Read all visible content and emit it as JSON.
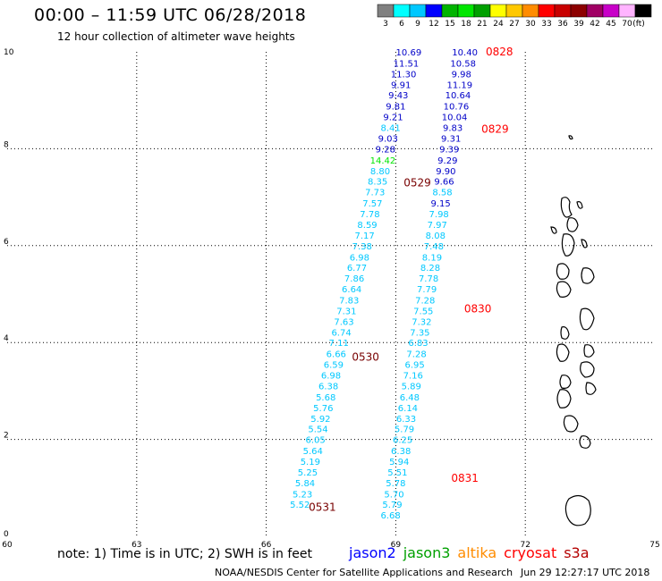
{
  "title": "00:00 – 11:59 UTC 06/28/2018",
  "subtitle": "12 hour collection of altimeter wave heights",
  "colorbar": {
    "unit_label": "(ft)",
    "bins": [
      {
        "label": "3",
        "color": "#808080"
      },
      {
        "label": "6",
        "color": "#00ffff"
      },
      {
        "label": "9",
        "color": "#00c8ff"
      },
      {
        "label": "12",
        "color": "#0000ff"
      },
      {
        "label": "15",
        "color": "#00b400"
      },
      {
        "label": "18",
        "color": "#00e600"
      },
      {
        "label": "21",
        "color": "#00a000"
      },
      {
        "label": "24",
        "color": "#ffff00"
      },
      {
        "label": "27",
        "color": "#ffc800"
      },
      {
        "label": "30",
        "color": "#ff8c00"
      },
      {
        "label": "33",
        "color": "#ff0000"
      },
      {
        "label": "36",
        "color": "#c80000"
      },
      {
        "label": "39",
        "color": "#8c0000"
      },
      {
        "label": "42",
        "color": "#a00064"
      },
      {
        "label": "45",
        "color": "#c800c8"
      },
      {
        "label": "70",
        "color": "#ffb4ff"
      },
      {
        "label": "",
        "color": "#000000"
      }
    ]
  },
  "axes": {
    "x_ticks": [
      {
        "label": "60",
        "value": 60
      },
      {
        "label": "63",
        "value": 63
      },
      {
        "label": "66",
        "value": 66
      },
      {
        "label": "69",
        "value": 69
      },
      {
        "label": "72",
        "value": 72
      },
      {
        "label": "75",
        "value": 75
      }
    ],
    "y_ticks": [
      {
        "label": "0",
        "value": 0
      },
      {
        "label": "2",
        "value": 2
      },
      {
        "label": "4",
        "value": 4
      },
      {
        "label": "6",
        "value": 6
      },
      {
        "label": "8",
        "value": 8
      },
      {
        "label": "10",
        "value": 10
      }
    ],
    "x_range": [
      60,
      75
    ],
    "y_range": [
      0,
      10
    ]
  },
  "colors": {
    "cyan": "#00c8ff",
    "blue": "#0000c8",
    "green": "#00e600",
    "dark_red": "#780000",
    "red": "#ff0000"
  },
  "tracks": {
    "west": {
      "labels_color": "cyan",
      "points": [
        {
          "lon": 69.3,
          "lat": 10.0,
          "v": "10.69",
          "c": "blue"
        },
        {
          "lon": 69.24,
          "lat": 9.77,
          "v": "11.51",
          "c": "blue"
        },
        {
          "lon": 69.18,
          "lat": 9.55,
          "v": "11.30",
          "c": "blue"
        },
        {
          "lon": 69.12,
          "lat": 9.33,
          "v": "9.91",
          "c": "blue"
        },
        {
          "lon": 69.06,
          "lat": 9.11,
          "v": "9.43",
          "c": "blue"
        },
        {
          "lon": 69.0,
          "lat": 8.88,
          "v": "9.81",
          "c": "blue"
        },
        {
          "lon": 68.94,
          "lat": 8.66,
          "v": "9.21",
          "c": "blue"
        },
        {
          "lon": 68.88,
          "lat": 8.44,
          "v": "8.41",
          "c": "cyan"
        },
        {
          "lon": 68.82,
          "lat": 8.22,
          "v": "9.03",
          "c": "blue"
        },
        {
          "lon": 68.76,
          "lat": 8.0,
          "v": "9.28",
          "c": "blue"
        },
        {
          "lon": 68.7,
          "lat": 7.77,
          "v": "14.42",
          "c": "green"
        },
        {
          "lon": 68.64,
          "lat": 7.55,
          "v": "8.80",
          "c": "cyan"
        },
        {
          "lon": 68.58,
          "lat": 7.33,
          "v": "8.35",
          "c": "cyan"
        },
        {
          "lon": 68.52,
          "lat": 7.11,
          "v": "7.73",
          "c": "cyan"
        },
        {
          "lon": 68.46,
          "lat": 6.88,
          "v": "7.57",
          "c": "cyan"
        },
        {
          "lon": 68.4,
          "lat": 6.66,
          "v": "7.78",
          "c": "cyan"
        },
        {
          "lon": 68.34,
          "lat": 6.44,
          "v": "8.59",
          "c": "cyan"
        },
        {
          "lon": 68.28,
          "lat": 6.22,
          "v": "7.17",
          "c": "cyan"
        },
        {
          "lon": 68.22,
          "lat": 6.0,
          "v": "7.38",
          "c": "cyan"
        },
        {
          "lon": 68.16,
          "lat": 5.77,
          "v": "6.98",
          "c": "cyan"
        },
        {
          "lon": 68.1,
          "lat": 5.55,
          "v": "6.77",
          "c": "cyan"
        },
        {
          "lon": 68.04,
          "lat": 5.33,
          "v": "7.86",
          "c": "cyan"
        },
        {
          "lon": 67.98,
          "lat": 5.11,
          "v": "6.64",
          "c": "cyan"
        },
        {
          "lon": 67.92,
          "lat": 4.88,
          "v": "7.83",
          "c": "cyan"
        },
        {
          "lon": 67.86,
          "lat": 4.66,
          "v": "7.31",
          "c": "cyan"
        },
        {
          "lon": 67.8,
          "lat": 4.44,
          "v": "7.63",
          "c": "cyan"
        },
        {
          "lon": 67.74,
          "lat": 4.22,
          "v": "6.74",
          "c": "cyan"
        },
        {
          "lon": 67.68,
          "lat": 4.0,
          "v": "7.11",
          "c": "cyan"
        },
        {
          "lon": 67.62,
          "lat": 3.77,
          "v": "6.66",
          "c": "cyan"
        },
        {
          "lon": 67.56,
          "lat": 3.55,
          "v": "6.59",
          "c": "cyan"
        },
        {
          "lon": 67.5,
          "lat": 3.33,
          "v": "6.98",
          "c": "cyan"
        },
        {
          "lon": 67.44,
          "lat": 3.11,
          "v": "6.38",
          "c": "cyan"
        },
        {
          "lon": 67.38,
          "lat": 2.88,
          "v": "5.68",
          "c": "cyan"
        },
        {
          "lon": 67.32,
          "lat": 2.66,
          "v": "5.76",
          "c": "cyan"
        },
        {
          "lon": 67.26,
          "lat": 2.44,
          "v": "5.92",
          "c": "cyan"
        },
        {
          "lon": 67.2,
          "lat": 2.22,
          "v": "5.54",
          "c": "cyan"
        },
        {
          "lon": 67.14,
          "lat": 2.0,
          "v": "6.05",
          "c": "cyan"
        },
        {
          "lon": 67.08,
          "lat": 1.77,
          "v": "5.64",
          "c": "cyan"
        },
        {
          "lon": 67.02,
          "lat": 1.55,
          "v": "5.19",
          "c": "cyan"
        },
        {
          "lon": 66.96,
          "lat": 1.33,
          "v": "5.25",
          "c": "cyan"
        },
        {
          "lon": 66.9,
          "lat": 1.11,
          "v": "5.84",
          "c": "cyan"
        },
        {
          "lon": 66.84,
          "lat": 0.88,
          "v": "5.23",
          "c": "cyan"
        },
        {
          "lon": 66.78,
          "lat": 0.66,
          "v": "5.52",
          "c": "cyan"
        }
      ],
      "times": [
        {
          "lon": 69.5,
          "lat": 7.3,
          "t": "0529",
          "c": "dark_red"
        },
        {
          "lon": 68.3,
          "lat": 3.7,
          "t": "0530",
          "c": "dark_red"
        },
        {
          "lon": 67.3,
          "lat": 0.6,
          "t": "0531",
          "c": "dark_red"
        }
      ]
    },
    "east": {
      "points": [
        {
          "lon": 70.6,
          "lat": 10.0,
          "v": "10.40",
          "c": "blue"
        },
        {
          "lon": 70.56,
          "lat": 9.77,
          "v": "10.58",
          "c": "blue"
        },
        {
          "lon": 70.52,
          "lat": 9.55,
          "v": "9.98",
          "c": "blue"
        },
        {
          "lon": 70.48,
          "lat": 9.33,
          "v": "11.19",
          "c": "blue"
        },
        {
          "lon": 70.44,
          "lat": 9.11,
          "v": "10.64",
          "c": "blue"
        },
        {
          "lon": 70.4,
          "lat": 8.88,
          "v": "10.76",
          "c": "blue"
        },
        {
          "lon": 70.36,
          "lat": 8.66,
          "v": "10.04",
          "c": "blue"
        },
        {
          "lon": 70.32,
          "lat": 8.44,
          "v": "9.83",
          "c": "blue"
        },
        {
          "lon": 70.28,
          "lat": 8.22,
          "v": "9.31",
          "c": "blue"
        },
        {
          "lon": 70.24,
          "lat": 8.0,
          "v": "9.39",
          "c": "blue"
        },
        {
          "lon": 70.2,
          "lat": 7.77,
          "v": "9.29",
          "c": "blue"
        },
        {
          "lon": 70.16,
          "lat": 7.55,
          "v": "9.90",
          "c": "blue"
        },
        {
          "lon": 70.12,
          "lat": 7.33,
          "v": "9.66",
          "c": "blue"
        },
        {
          "lon": 70.08,
          "lat": 7.11,
          "v": "8.58",
          "c": "cyan"
        },
        {
          "lon": 70.04,
          "lat": 6.88,
          "v": "9.15",
          "c": "blue"
        },
        {
          "lon": 70.0,
          "lat": 6.66,
          "v": "7.98",
          "c": "cyan"
        },
        {
          "lon": 69.96,
          "lat": 6.44,
          "v": "7.97",
          "c": "cyan"
        },
        {
          "lon": 69.92,
          "lat": 6.22,
          "v": "8.08",
          "c": "cyan"
        },
        {
          "lon": 69.88,
          "lat": 6.0,
          "v": "7.48",
          "c": "cyan"
        },
        {
          "lon": 69.84,
          "lat": 5.77,
          "v": "8.19",
          "c": "cyan"
        },
        {
          "lon": 69.8,
          "lat": 5.55,
          "v": "8.28",
          "c": "cyan"
        },
        {
          "lon": 69.76,
          "lat": 5.33,
          "v": "7.78",
          "c": "cyan"
        },
        {
          "lon": 69.72,
          "lat": 5.11,
          "v": "7.79",
          "c": "cyan"
        },
        {
          "lon": 69.68,
          "lat": 4.88,
          "v": "7.28",
          "c": "cyan"
        },
        {
          "lon": 69.64,
          "lat": 4.66,
          "v": "7.55",
          "c": "cyan"
        },
        {
          "lon": 69.6,
          "lat": 4.44,
          "v": "7.32",
          "c": "cyan"
        },
        {
          "lon": 69.56,
          "lat": 4.22,
          "v": "7.35",
          "c": "cyan"
        },
        {
          "lon": 69.52,
          "lat": 4.0,
          "v": "6.83",
          "c": "cyan"
        },
        {
          "lon": 69.48,
          "lat": 3.77,
          "v": "7.28",
          "c": "cyan"
        },
        {
          "lon": 69.44,
          "lat": 3.55,
          "v": "6.95",
          "c": "cyan"
        },
        {
          "lon": 69.4,
          "lat": 3.33,
          "v": "7.16",
          "c": "cyan"
        },
        {
          "lon": 69.36,
          "lat": 3.11,
          "v": "5.89",
          "c": "cyan"
        },
        {
          "lon": 69.32,
          "lat": 2.88,
          "v": "6.48",
          "c": "cyan"
        },
        {
          "lon": 69.28,
          "lat": 2.66,
          "v": "6.14",
          "c": "cyan"
        },
        {
          "lon": 69.24,
          "lat": 2.44,
          "v": "6.33",
          "c": "cyan"
        },
        {
          "lon": 69.2,
          "lat": 2.22,
          "v": "5.79",
          "c": "cyan"
        },
        {
          "lon": 69.16,
          "lat": 2.0,
          "v": "6.25",
          "c": "cyan"
        },
        {
          "lon": 69.12,
          "lat": 1.77,
          "v": "6.38",
          "c": "cyan"
        },
        {
          "lon": 69.08,
          "lat": 1.55,
          "v": "5.94",
          "c": "cyan"
        },
        {
          "lon": 69.04,
          "lat": 1.33,
          "v": "5.51",
          "c": "cyan"
        },
        {
          "lon": 69.0,
          "lat": 1.11,
          "v": "5.78",
          "c": "cyan"
        },
        {
          "lon": 68.96,
          "lat": 0.88,
          "v": "5.70",
          "c": "cyan"
        },
        {
          "lon": 68.92,
          "lat": 0.66,
          "v": "5.79",
          "c": "cyan"
        },
        {
          "lon": 68.88,
          "lat": 0.44,
          "v": "6.68",
          "c": "cyan"
        }
      ],
      "times": [
        {
          "lon": 71.4,
          "lat": 10.0,
          "t": "0828",
          "c": "red"
        },
        {
          "lon": 71.3,
          "lat": 8.4,
          "t": "0829",
          "c": "red"
        },
        {
          "lon": 70.9,
          "lat": 4.7,
          "t": "0830",
          "c": "red"
        },
        {
          "lon": 70.6,
          "lat": 1.2,
          "t": "0831",
          "c": "red"
        }
      ]
    }
  },
  "footer": {
    "note": "note:  1) Time is in UTC;  2) SWH is in feet",
    "missions": [
      {
        "name": "jason2",
        "color": "#0000ff"
      },
      {
        "name": "jason3",
        "color": "#00a000"
      },
      {
        "name": "altika",
        "color": "#ff8c00"
      },
      {
        "name": "cryosat",
        "color": "#ff0000"
      },
      {
        "name": "s3a",
        "color": "#b40000"
      }
    ],
    "credit": "NOAA/NESDIS Center for Satellite Applications and Research",
    "timestamp": "Jun 29 12:27:17 UTC 2018"
  }
}
